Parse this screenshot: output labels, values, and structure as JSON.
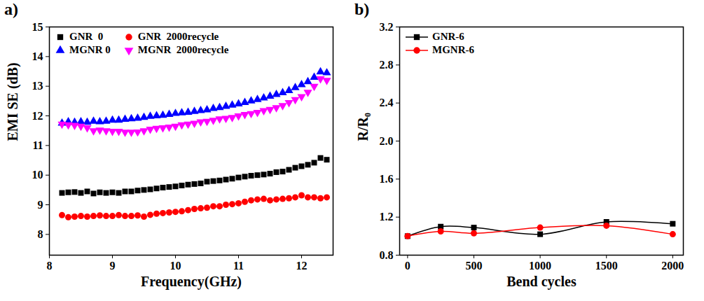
{
  "chart_data": [
    {
      "type": "scatter",
      "title": "a)",
      "x_label": "Frequency(GHz)",
      "y_label": "EMI SE (dB)",
      "x": [
        8.2,
        8.3,
        8.4,
        8.5,
        8.6,
        8.7,
        8.8,
        8.9,
        9.0,
        9.1,
        9.2,
        9.3,
        9.4,
        9.5,
        9.6,
        9.7,
        9.8,
        9.9,
        10.0,
        10.1,
        10.2,
        10.3,
        10.4,
        10.5,
        10.6,
        10.7,
        10.8,
        10.9,
        11.0,
        11.1,
        11.2,
        11.3,
        11.4,
        11.5,
        11.6,
        11.7,
        11.8,
        11.9,
        12.0,
        12.1,
        12.2,
        12.3,
        12.4
      ],
      "series": [
        {
          "name": "GNR  0",
          "color": "#000000",
          "marker": "square",
          "values": [
            9.4,
            9.42,
            9.43,
            9.4,
            9.45,
            9.38,
            9.42,
            9.4,
            9.42,
            9.4,
            9.45,
            9.45,
            9.48,
            9.5,
            9.52,
            9.55,
            9.58,
            9.6,
            9.62,
            9.65,
            9.68,
            9.7,
            9.72,
            9.78,
            9.8,
            9.82,
            9.85,
            9.88,
            9.92,
            9.95,
            9.98,
            10.0,
            10.02,
            10.05,
            10.1,
            10.12,
            10.18,
            10.25,
            10.3,
            10.35,
            10.42,
            10.58,
            10.52
          ]
        },
        {
          "name": "GNR  2000recycle",
          "color": "#ff0000",
          "marker": "circle",
          "values": [
            8.65,
            8.58,
            8.6,
            8.62,
            8.6,
            8.62,
            8.64,
            8.62,
            8.62,
            8.65,
            8.62,
            8.62,
            8.64,
            8.6,
            8.66,
            8.7,
            8.72,
            8.74,
            8.76,
            8.78,
            8.82,
            8.86,
            8.88,
            8.9,
            8.95,
            8.95,
            9.0,
            9.02,
            9.05,
            9.1,
            9.15,
            9.18,
            9.2,
            9.15,
            9.18,
            9.2,
            9.22,
            9.25,
            9.32,
            9.25,
            9.25,
            9.22,
            9.25
          ]
        },
        {
          "name": "MGNR 0",
          "color": "#0000ff",
          "marker": "triangle",
          "values": [
            11.75,
            11.8,
            11.78,
            11.8,
            11.78,
            11.82,
            11.8,
            11.82,
            11.85,
            11.85,
            11.88,
            11.9,
            11.92,
            11.95,
            11.98,
            12.0,
            12.02,
            12.05,
            12.08,
            12.1,
            12.12,
            12.15,
            12.18,
            12.2,
            12.25,
            12.28,
            12.32,
            12.36,
            12.4,
            12.45,
            12.5,
            12.55,
            12.6,
            12.66,
            12.72,
            12.78,
            12.85,
            12.95,
            13.05,
            13.15,
            13.3,
            13.48,
            13.45
          ]
        },
        {
          "name": "MGNR  2000recycle",
          "color": "#ff00ff",
          "marker": "triangle-down",
          "values": [
            11.72,
            11.7,
            11.68,
            11.65,
            11.6,
            11.5,
            11.52,
            11.5,
            11.48,
            11.48,
            11.45,
            11.45,
            11.46,
            11.5,
            11.55,
            11.58,
            11.6,
            11.62,
            11.65,
            11.7,
            11.72,
            11.75,
            11.8,
            11.82,
            11.85,
            11.9,
            11.92,
            11.95,
            12.0,
            12.05,
            12.08,
            12.12,
            12.18,
            12.22,
            12.28,
            12.35,
            12.45,
            12.55,
            12.65,
            12.8,
            13.0,
            13.25,
            13.2
          ]
        }
      ],
      "xlim": [
        8,
        12.5
      ],
      "xticks": [
        8,
        9,
        10,
        11,
        12
      ],
      "ylim": [
        7.3,
        15
      ],
      "yticks": [
        8,
        9,
        10,
        11,
        12,
        13,
        14,
        15
      ],
      "legend": "top-left"
    },
    {
      "type": "line",
      "title": "b)",
      "x_label": "Bend cycles",
      "y_label": "R/R₀",
      "x": [
        0,
        250,
        500,
        1000,
        1500,
        2000
      ],
      "series": [
        {
          "name": "GNR-6",
          "color": "#000000",
          "marker": "square",
          "line_style": "smooth",
          "values": [
            1.0,
            1.1,
            1.09,
            1.02,
            1.15,
            1.13
          ]
        },
        {
          "name": "MGNR-6",
          "color": "#ff0000",
          "marker": "circle",
          "line_style": "smooth",
          "values": [
            1.0,
            1.05,
            1.03,
            1.09,
            1.11,
            1.02
          ]
        }
      ],
      "xlim": [
        -60,
        2080
      ],
      "xticks": [
        0,
        500,
        1000,
        1500,
        2000
      ],
      "ylim": [
        0.8,
        3.2
      ],
      "yticks": [
        0.8,
        1.2,
        1.6,
        {
          "value": 2,
          "label": "2.0"
        },
        2.4,
        2.8,
        3.2
      ],
      "legend": "top-left"
    }
  ]
}
